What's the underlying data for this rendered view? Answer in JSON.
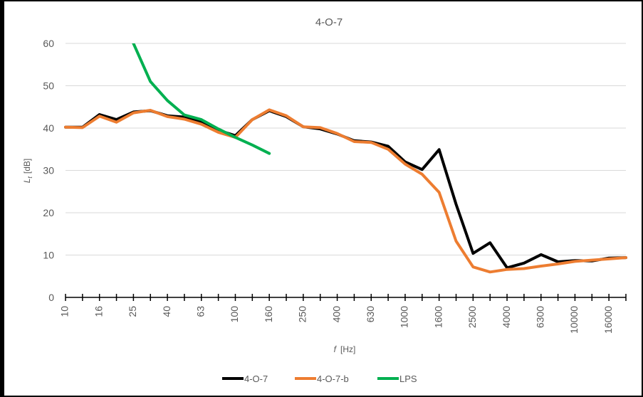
{
  "chart_data": {
    "type": "line",
    "title": "4-O-7",
    "xlabel": "f",
    "xunit": "[Hz]",
    "ylabel": "L",
    "ylabel_sub": "t",
    "yunit": "[dB]",
    "ylim": [
      0,
      60
    ],
    "yticks": [
      0,
      10,
      20,
      30,
      40,
      50,
      60
    ],
    "grid": true,
    "legend_position": "bottom",
    "x_categories": [
      10,
      12.5,
      16,
      20,
      25,
      31.5,
      40,
      50,
      63,
      80,
      100,
      125,
      160,
      200,
      250,
      315,
      400,
      500,
      630,
      800,
      1000,
      1250,
      1600,
      2000,
      2500,
      3150,
      4000,
      5000,
      6300,
      8000,
      10000,
      12500,
      16000,
      20000
    ],
    "x_tick_labels": [
      "10",
      "16",
      "25",
      "40",
      "63",
      "100",
      "160",
      "250",
      "400",
      "630",
      "1000",
      "1600",
      "2500",
      "4000",
      "6300",
      "10000",
      "16000"
    ],
    "series": [
      {
        "name": "4-O-7",
        "color": "#000000",
        "values": [
          40.2,
          40.2,
          43.2,
          42.0,
          43.8,
          44.1,
          42.9,
          42.6,
          41.5,
          39.5,
          38.2,
          42.0,
          44.1,
          42.7,
          40.3,
          39.8,
          38.6,
          37.0,
          36.7,
          35.7,
          32.0,
          30.2,
          34.9,
          22.0,
          10.4,
          12.9,
          7.0,
          8.1,
          10.1,
          8.4,
          8.7,
          8.6,
          9.3,
          9.4
        ]
      },
      {
        "name": "4-O-7-b",
        "color": "#ED7D31",
        "values": [
          40.2,
          40.1,
          42.8,
          41.4,
          43.6,
          44.2,
          42.7,
          42.1,
          40.9,
          39.0,
          37.8,
          42.0,
          44.3,
          42.9,
          40.3,
          40.1,
          38.7,
          36.8,
          36.6,
          35.0,
          31.5,
          29.1,
          24.8,
          13.3,
          7.2,
          6.0,
          6.6,
          6.8,
          7.4,
          7.9,
          8.5,
          8.8,
          9.1,
          9.4
        ]
      },
      {
        "name": "LPS",
        "color": "#00B050",
        "values": [
          null,
          null,
          null,
          null,
          60.0,
          51.0,
          46.5,
          43.1,
          42.0,
          39.8,
          37.8,
          36.0,
          34.0,
          null,
          null,
          null,
          null,
          null,
          null,
          null,
          null,
          null,
          null,
          null,
          null,
          null,
          null,
          null,
          null,
          null,
          null,
          null,
          null,
          null
        ]
      }
    ]
  }
}
